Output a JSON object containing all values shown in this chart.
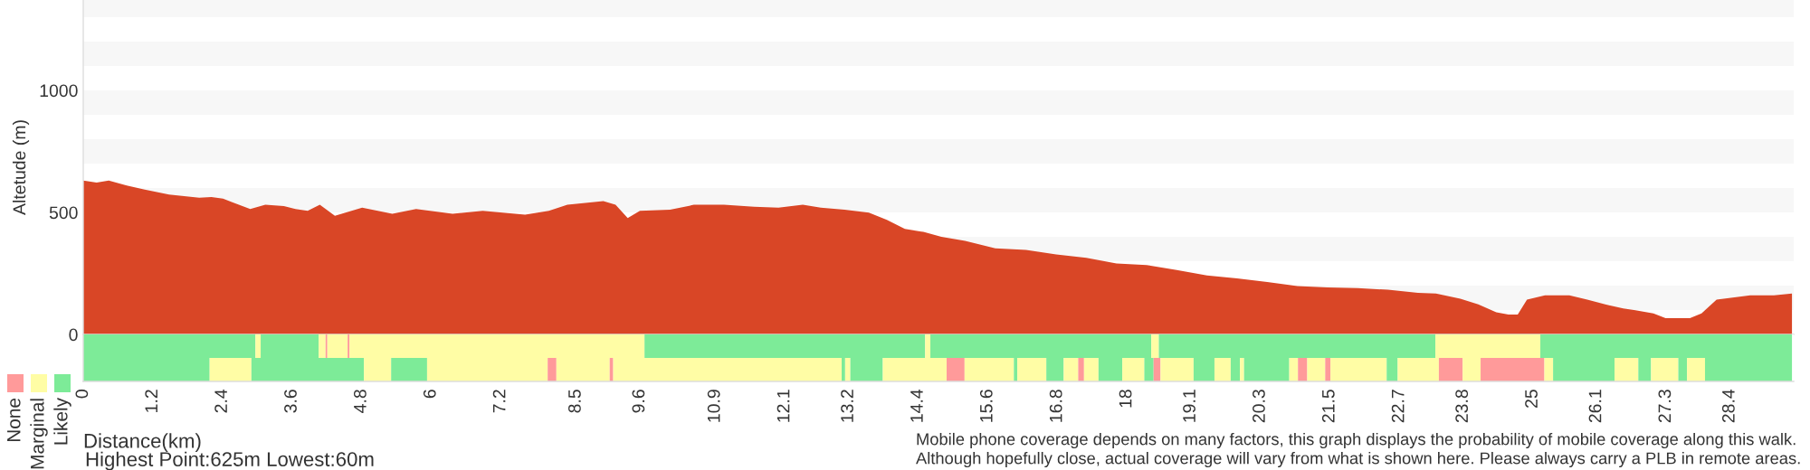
{
  "chart_data": [
    {
      "type": "area",
      "ylabel": "Altetude (m)",
      "xlim": [
        0,
        29.5
      ],
      "ylim": [
        0,
        1370
      ],
      "yticks": [
        0,
        500,
        1000
      ],
      "tick_labels": "y",
      "grid": false,
      "bands": [
        {
          "axis": "y",
          "from": 100,
          "to": 200,
          "color": "#f7f7f7"
        },
        {
          "axis": "y",
          "from": 300,
          "to": 400,
          "color": "#f7f7f7"
        },
        {
          "axis": "y",
          "from": 500,
          "to": 600,
          "color": "#f7f7f7"
        },
        {
          "axis": "y",
          "from": 700,
          "to": 800,
          "color": "#f7f7f7"
        },
        {
          "axis": "y",
          "from": 900,
          "to": 1000,
          "color": "#f7f7f7"
        },
        {
          "axis": "y",
          "from": 1100,
          "to": 1200,
          "color": "#f7f7f7"
        },
        {
          "axis": "y",
          "from": 1300,
          "to": 1370,
          "color": "#f7f7f7"
        }
      ],
      "series": [
        {
          "color": "#d94626",
          "x": [
            0,
            0.23,
            0.44,
            0.75,
            1.06,
            1.48,
            2.0,
            2.21,
            2.41,
            2.88,
            3.14,
            3.46,
            3.66,
            3.87,
            4.08,
            4.34,
            4.81,
            5.33,
            5.74,
            6.37,
            6.89,
            7.62,
            8.03,
            8.35,
            8.97,
            9.18,
            9.39,
            9.6,
            10.12,
            10.53,
            11.05,
            11.57,
            11.99,
            12.41,
            12.72,
            13.13,
            13.55,
            13.86,
            14.17,
            14.49,
            14.8,
            15.21,
            15.73,
            16.26,
            16.78,
            17.3,
            17.82,
            18.34,
            18.86,
            19.38,
            19.9,
            20.42,
            20.94,
            21.46,
            21.98,
            22.5,
            23.02,
            23.33,
            23.75,
            24.06,
            24.37,
            24.58,
            24.74,
            24.9,
            25.21,
            25.63,
            25.94,
            26.25,
            26.56,
            26.77,
            27.08,
            27.29,
            27.71,
            27.91,
            28.17,
            28.75,
            29.16,
            29.47
          ],
          "values": [
            630,
            622,
            630,
            610,
            593,
            573,
            560,
            563,
            556,
            514,
            531,
            526,
            514,
            506,
            531,
            486,
            519,
            494,
            514,
            494,
            506,
            491,
            506,
            531,
            546,
            531,
            477,
            506,
            511,
            531,
            531,
            523,
            519,
            531,
            519,
            511,
            499,
            469,
            432,
            420,
            400,
            383,
            353,
            346,
            328,
            314,
            291,
            284,
            264,
            242,
            230,
            215,
            198,
            193,
            190,
            183,
            170,
            168,
            146,
            123,
            91,
            81,
            81,
            143,
            160,
            160,
            143,
            123,
            106,
            99,
            86,
            67,
            67,
            86,
            143,
            160,
            160,
            168
          ]
        }
      ]
    },
    {
      "type": "bar",
      "orientation": "horizontal",
      "stacked": true,
      "categories": [
        null,
        null
      ],
      "xlim": [
        0,
        29.5
      ],
      "legend": "left",
      "xlabel": "Distance(km)",
      "xticks": [
        0,
        1.2,
        2.4,
        3.6,
        4.8,
        6,
        7.2,
        8.5,
        9.6,
        10.9,
        12.1,
        13.2,
        14.4,
        15.6,
        16.8,
        18,
        19.1,
        20.3,
        21.5,
        22.7,
        23.8,
        25,
        26.1,
        27.3,
        28.4
      ],
      "annotations": [
        "Highest Point:625m Lowest:60m",
        "Mobile phone coverage depends on many factors, this graph displays the probability of mobile coverage along this walk.\nAlthough hopefully close, actual coverage will vary from what is shown here. Please always carry a PLB in remote areas."
      ],
      "series": [
        {
          "colors": [
            "#7deb98",
            "#7deb98"
          ],
          "values": [
            2.97,
            2.18
          ]
        },
        {
          "colors": [
            "#fffda5",
            "#fffda5"
          ],
          "values": [
            0.09,
            0.72
          ]
        },
        {
          "colors": [
            "#7deb98",
            "#7deb98"
          ],
          "values": [
            1.0,
            1.94
          ]
        },
        {
          "colors": [
            "#fffda5",
            "#fffda5"
          ],
          "values": [
            0.12,
            0.47
          ]
        },
        {
          "colors": [
            "#ff9a9a",
            "#7deb98"
          ],
          "values": [
            0.03,
            0.62
          ]
        },
        {
          "colors": [
            "#fffda5",
            "#fffda5"
          ],
          "values": [
            0.35,
            2.08
          ]
        },
        {
          "colors": [
            "#ff9a9a",
            "#ff9a9a"
          ],
          "values": [
            0.03,
            0.15
          ]
        },
        {
          "colors": [
            "#fffda5",
            "#fffda5"
          ],
          "values": [
            5.09,
            0.92
          ]
        },
        {
          "colors": [
            "#7deb98",
            "#ff9a9a"
          ],
          "values": [
            4.84,
            0.06
          ]
        },
        {
          "colors": [
            "#fffda5",
            "#fffda5"
          ],
          "values": [
            0.09,
            3.94
          ]
        },
        {
          "colors": [
            "#7deb98",
            "#7deb98"
          ],
          "values": [
            3.81,
            0.06
          ]
        },
        {
          "colors": [
            "#fffda5",
            "#fffda5"
          ],
          "values": [
            0.13,
            0.09
          ]
        },
        {
          "colors": [
            "#7deb98",
            "#7deb98"
          ],
          "values": [
            4.77,
            0.56
          ]
        },
        {
          "colors": [
            "#fffda5",
            "#fffda5"
          ],
          "values": [
            1.81,
            1.1
          ]
        },
        {
          "colors": [
            "#7deb98",
            "#ff9a9a"
          ],
          "values": [
            4.34,
            0.31
          ]
        },
        {
          "colors": [
            null,
            "#fffda5"
          ],
          "values": [
            null,
            0.85
          ]
        },
        {
          "colors": [
            null,
            "#7deb98"
          ],
          "values": [
            null,
            0.06
          ]
        },
        {
          "colors": [
            null,
            "#fffda5"
          ],
          "values": [
            null,
            0.5
          ]
        },
        {
          "colors": [
            null,
            "#7deb98"
          ],
          "values": [
            null,
            0.3
          ]
        },
        {
          "colors": [
            null,
            "#fffda5"
          ],
          "values": [
            null,
            0.25
          ]
        },
        {
          "colors": [
            null,
            "#ff9a9a"
          ],
          "values": [
            null,
            0.1
          ]
        },
        {
          "colors": [
            null,
            "#fffda5"
          ],
          "values": [
            null,
            0.25
          ]
        },
        {
          "colors": [
            null,
            "#7deb98"
          ],
          "values": [
            null,
            0.41
          ]
        },
        {
          "colors": [
            null,
            "#fffda5"
          ],
          "values": [
            null,
            0.38
          ]
        },
        {
          "colors": [
            null,
            "#7deb98"
          ],
          "values": [
            null,
            0.16
          ]
        },
        {
          "colors": [
            null,
            "#ff9a9a"
          ],
          "values": [
            null,
            0.12
          ]
        },
        {
          "colors": [
            null,
            "#fffda5"
          ],
          "values": [
            null,
            0.57
          ]
        },
        {
          "colors": [
            null,
            "#7deb98"
          ],
          "values": [
            null,
            0.36
          ]
        },
        {
          "colors": [
            null,
            "#fffda5"
          ],
          "values": [
            null,
            0.28
          ]
        },
        {
          "colors": [
            null,
            "#7deb98"
          ],
          "values": [
            null,
            0.16
          ]
        },
        {
          "colors": [
            null,
            "#fffda5"
          ],
          "values": [
            null,
            0.07
          ]
        },
        {
          "colors": [
            null,
            "#7deb98"
          ],
          "values": [
            null,
            0.78
          ]
        },
        {
          "colors": [
            null,
            "#fffda5"
          ],
          "values": [
            null,
            0.15
          ]
        },
        {
          "colors": [
            null,
            "#ff9a9a"
          ],
          "values": [
            null,
            0.16
          ]
        },
        {
          "colors": [
            null,
            "#fffda5"
          ],
          "values": [
            null,
            0.31
          ]
        },
        {
          "colors": [
            null,
            "#ff9a9a"
          ],
          "values": [
            null,
            0.09
          ]
        },
        {
          "colors": [
            null,
            "#fffda5"
          ],
          "values": [
            null,
            0.97
          ]
        },
        {
          "colors": [
            null,
            "#7deb98"
          ],
          "values": [
            null,
            0.19
          ]
        },
        {
          "colors": [
            null,
            "#fffda5"
          ],
          "values": [
            null,
            0.71
          ]
        },
        {
          "colors": [
            null,
            "#ff9a9a"
          ],
          "values": [
            null,
            0.41
          ]
        },
        {
          "colors": [
            null,
            "#fffda5"
          ],
          "values": [
            null,
            0.31
          ]
        },
        {
          "name": "None",
          "colors": [
            null,
            "#ff9a9a"
          ],
          "values": [
            null,
            1.1
          ]
        },
        {
          "colors": [
            null,
            "#fffda5"
          ],
          "values": [
            null,
            0.15
          ]
        },
        {
          "colors": [
            null,
            "#7deb98"
          ],
          "values": [
            null,
            1.06
          ]
        },
        {
          "colors": [
            null,
            "#fffda5"
          ],
          "values": [
            null,
            0.41
          ]
        },
        {
          "colors": [
            null,
            "#7deb98"
          ],
          "values": [
            null,
            0.22
          ]
        },
        {
          "colors": [
            null,
            "#fffda5"
          ],
          "values": [
            null,
            0.47
          ]
        },
        {
          "colors": [
            null,
            "#7deb98"
          ],
          "values": [
            null,
            0.15
          ]
        },
        {
          "name": "Marginal",
          "colors": [
            null,
            "#fffda5"
          ],
          "values": [
            null,
            0.31
          ]
        },
        {
          "name": "Likely",
          "colors": [
            null,
            "#7deb98"
          ],
          "values": [
            null,
            1.5
          ]
        }
      ]
    }
  ]
}
